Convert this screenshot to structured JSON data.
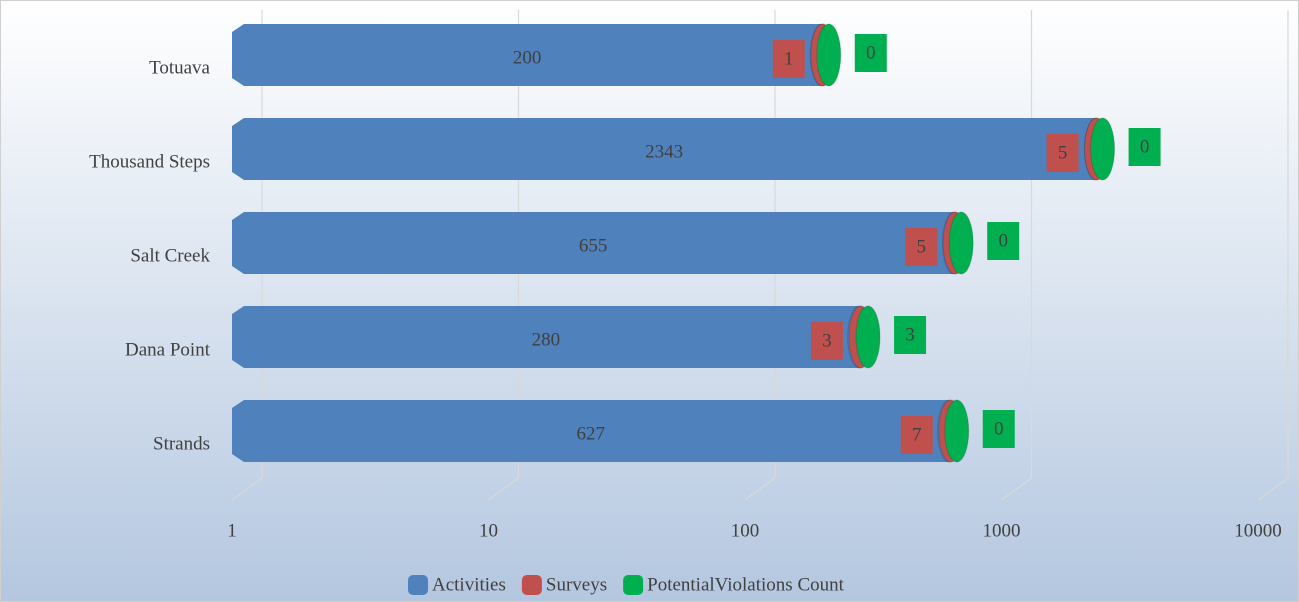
{
  "chart_data": {
    "type": "bar",
    "orientation": "horizontal",
    "stacked": true,
    "categories": [
      "Totuava",
      "Thousand Steps",
      "Salt Creek",
      "Dana Point",
      "Strands"
    ],
    "series": [
      {
        "name": "Activities",
        "color": "#4f81bd",
        "values": [
          200,
          2343,
          655,
          280,
          627
        ]
      },
      {
        "name": "Surveys",
        "color": "#c0504d",
        "values": [
          1,
          5,
          5,
          3,
          7
        ]
      },
      {
        "name": "PotentialViolations Count",
        "color": "#00b050",
        "values": [
          0,
          0,
          0,
          3,
          0
        ]
      }
    ],
    "xlim": [
      1,
      10000
    ],
    "xticks": [
      1,
      10,
      100,
      1000,
      10000
    ],
    "log_x": true,
    "grid": true,
    "legend": "bottom"
  }
}
